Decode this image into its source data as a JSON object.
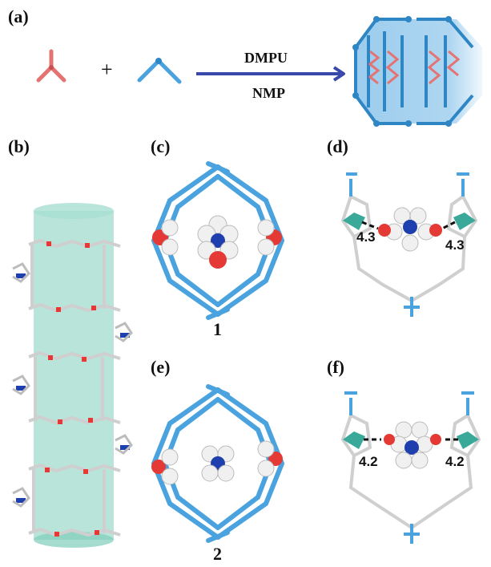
{
  "panels": {
    "a": "(a)",
    "b": "(b)",
    "c": "(c)",
    "d": "(d)",
    "e": "(e)",
    "f": "(f)"
  },
  "scheme": {
    "plus": "+",
    "solvent_top": "DMPU",
    "solvent_bottom": "NMP"
  },
  "compounds": {
    "c_label": "1",
    "e_label": "2"
  },
  "distances": {
    "d_left": "4.3",
    "d_right": "4.3",
    "f_left": "4.2",
    "f_right": "4.2"
  },
  "colors": {
    "tripod": "#e57373",
    "linker": "#4aa3df",
    "arrow": "#3949ab",
    "cylinder": "#7fcdbb",
    "oxygen": "#e53935",
    "nitrogen": "#1e3fae",
    "carbon": "#d9d9d9",
    "teal": "#3aa99a"
  }
}
